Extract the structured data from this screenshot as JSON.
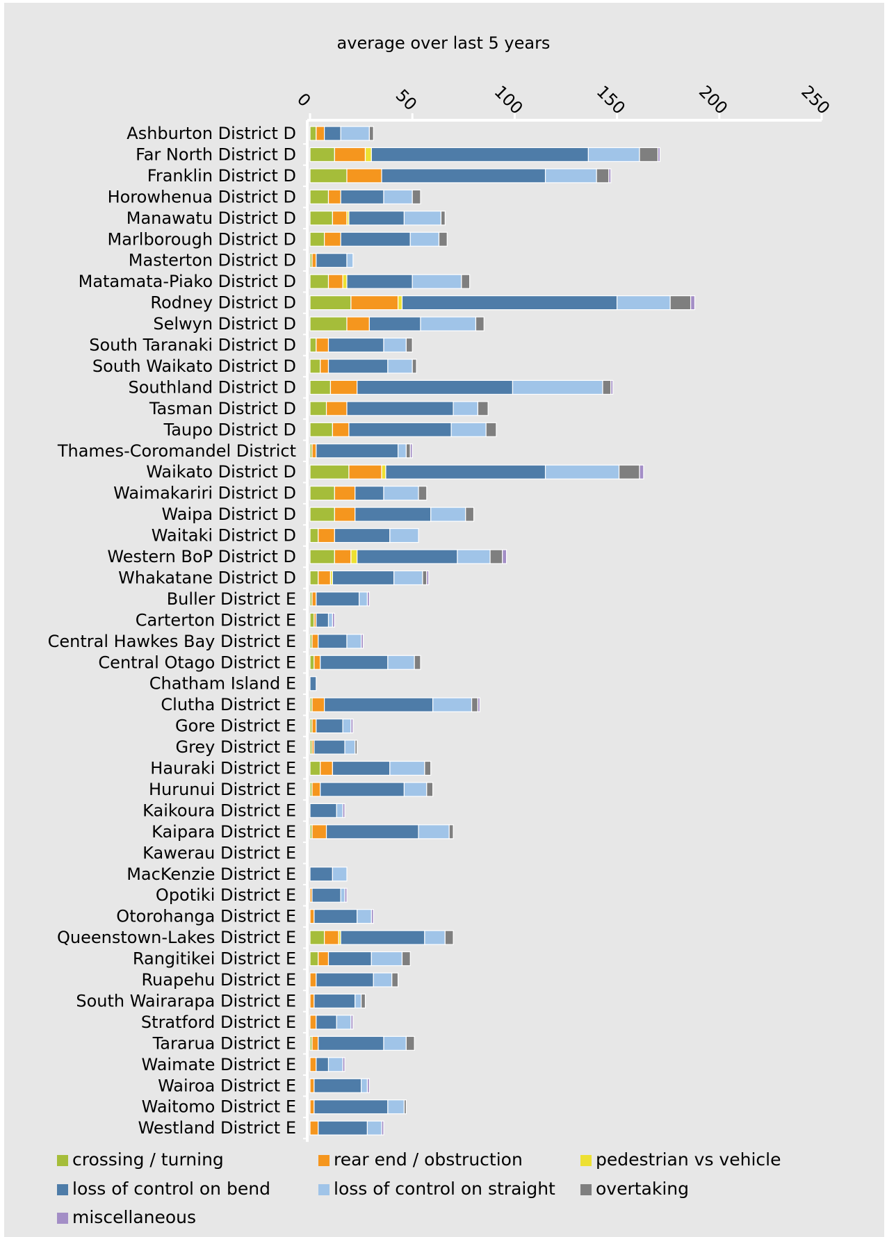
{
  "chart_data": {
    "type": "bar",
    "orientation": "horizontal",
    "stacked": true,
    "title": "average over last 5 years",
    "xlim": [
      0,
      250
    ],
    "ticks": [
      "0",
      "50",
      "100",
      "150",
      "200",
      "250"
    ],
    "tick_values": [
      0,
      50,
      100,
      150,
      200,
      250
    ],
    "legend_position": "bottom",
    "grid": false,
    "categories": [
      "Ashburton District D",
      "Far North District D",
      "Franklin District D",
      "Horowhenua District D",
      "Manawatu District D",
      "Marlborough District D",
      "Masterton District D",
      "Matamata-Piako District D",
      "Rodney District D",
      "Selwyn District D",
      "South Taranaki District D",
      "South Waikato District D",
      "Southland District D",
      "Tasman District D",
      "Taupo District D",
      "Thames-Coromandel District",
      "Waikato District D",
      "Waimakariri District D",
      "Waipa District D",
      "Waitaki District D",
      "Western BoP District D",
      "Whakatane District D",
      "Buller District E",
      "Carterton District E",
      "Central Hawkes Bay District E",
      "Central Otago District E",
      "Chatham Island E",
      "Clutha District E",
      "Gore District E",
      "Grey District E",
      "Hauraki District E",
      "Hurunui District E",
      "Kaikoura District E",
      "Kaipara District E",
      "Kawerau District E",
      "MacKenzie District E",
      "Opotiki District E",
      "Otorohanga District E",
      "Queenstown-Lakes District E",
      "Rangitikei District E",
      "Ruapehu District E",
      "South Wairarapa District E",
      "Stratford District E",
      "Tararua District E",
      "Waimate District E",
      "Wairoa District E",
      "Waitomo District E",
      "Westland District E"
    ],
    "series": [
      {
        "name": "crossing / turning",
        "color": "#a5bd3a",
        "values": [
          3,
          12,
          18,
          9,
          11,
          7,
          1,
          9,
          20,
          18,
          3,
          5,
          10,
          8,
          11,
          1,
          19,
          12,
          12,
          4,
          12,
          4,
          1,
          2,
          1,
          2,
          0,
          1,
          1,
          1,
          5,
          1,
          0,
          1,
          0,
          0,
          0,
          0,
          7,
          4,
          0,
          0,
          0,
          1,
          0,
          0,
          0,
          0
        ]
      },
      {
        "name": "rear end / obstruction",
        "color": "#f5961e",
        "values": [
          4,
          15,
          17,
          6,
          7,
          8,
          2,
          7,
          23,
          11,
          6,
          4,
          13,
          10,
          8,
          2,
          16,
          10,
          10,
          8,
          8,
          6,
          2,
          1,
          3,
          3,
          0,
          6,
          2,
          1,
          6,
          4,
          0,
          7,
          0,
          0,
          1,
          2,
          7,
          5,
          3,
          2,
          3,
          3,
          3,
          2,
          2,
          4
        ]
      },
      {
        "name": "pedestrian vs vehicle",
        "color": "#ede032",
        "values": [
          0,
          3,
          0,
          0,
          1,
          0,
          0,
          2,
          2,
          0,
          0,
          0,
          0,
          0,
          0,
          0,
          2,
          0,
          0,
          0,
          3,
          1,
          0,
          0,
          0,
          0,
          0,
          0,
          0,
          0,
          0,
          0,
          0,
          0,
          0,
          0,
          0,
          0,
          1,
          0,
          0,
          0,
          0,
          0,
          0,
          0,
          0,
          0
        ]
      },
      {
        "name": "loss of control on bend",
        "color": "#4e7ca8",
        "values": [
          8,
          106,
          80,
          21,
          27,
          34,
          15,
          32,
          105,
          25,
          27,
          29,
          76,
          52,
          50,
          40,
          78,
          14,
          37,
          27,
          49,
          30,
          21,
          6,
          14,
          33,
          3,
          53,
          13,
          15,
          28,
          41,
          13,
          45,
          0,
          11,
          14,
          21,
          41,
          21,
          28,
          20,
          10,
          32,
          6,
          23,
          36,
          24
        ]
      },
      {
        "name": "loss of control on straight",
        "color": "#a0c4e8",
        "values": [
          14,
          25,
          25,
          14,
          18,
          14,
          3,
          24,
          26,
          27,
          11,
          12,
          44,
          12,
          17,
          4,
          36,
          17,
          17,
          14,
          16,
          14,
          4,
          2,
          7,
          13,
          0,
          19,
          4,
          5,
          17,
          11,
          3,
          15,
          0,
          7,
          2,
          7,
          10,
          15,
          9,
          3,
          7,
          11,
          7,
          3,
          8,
          7
        ]
      },
      {
        "name": "overtaking",
        "color": "#7f7f7f",
        "values": [
          2,
          9,
          6,
          4,
          2,
          4,
          0,
          4,
          10,
          4,
          3,
          2,
          4,
          5,
          5,
          2,
          10,
          4,
          4,
          0,
          6,
          2,
          0,
          0,
          0,
          3,
          0,
          3,
          0,
          1,
          3,
          3,
          0,
          2,
          0,
          0,
          0,
          0,
          4,
          4,
          3,
          2,
          0,
          4,
          0,
          0,
          1,
          0
        ]
      },
      {
        "name": "miscellaneous",
        "color": "#a38ec6",
        "values": [
          0,
          1,
          1,
          0,
          0,
          0,
          0,
          0,
          2,
          0,
          0,
          0,
          1,
          0,
          0,
          1,
          2,
          0,
          0,
          0,
          2,
          1,
          1,
          1,
          1,
          0,
          0,
          1,
          1,
          0,
          0,
          0,
          1,
          0,
          0,
          0,
          1,
          1,
          0,
          0,
          0,
          0,
          1,
          0,
          1,
          1,
          0,
          1
        ]
      }
    ]
  },
  "colors": {
    "page": "#ffffff",
    "panel": "#e7e7e7",
    "axis": "#ffffff",
    "gridline": "#ffffff"
  }
}
